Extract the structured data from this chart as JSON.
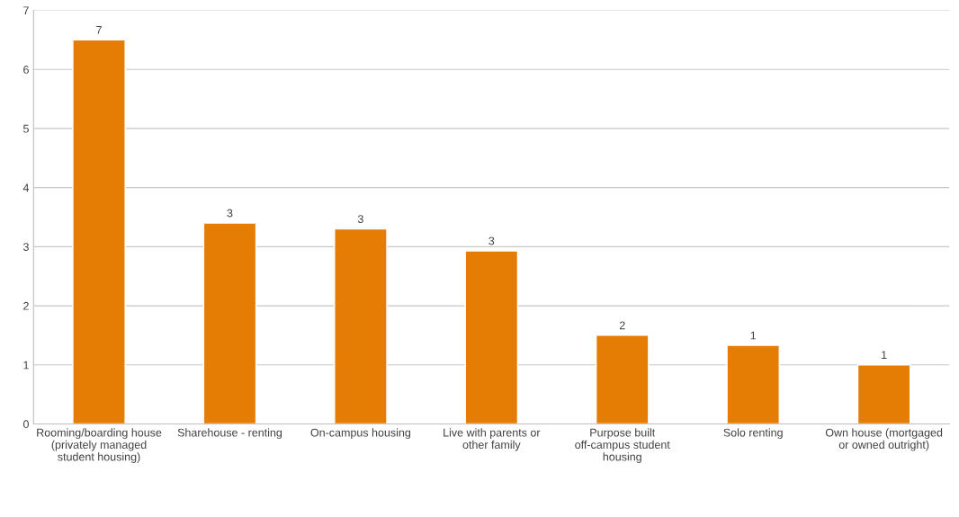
{
  "chart_data": {
    "type": "bar",
    "categories": [
      "Rooming/boarding house (privately managed student housing)",
      "Sharehouse - renting",
      "On-campus housing",
      "Live with parents or other family",
      "Purpose built off-campus student housing",
      "Solo renting",
      "Own house (mortgaged or owned outright)"
    ],
    "values": [
      6.5,
      3.4,
      3.3,
      2.93,
      1.5,
      1.33,
      1.0
    ],
    "value_labels": [
      "7",
      "3",
      "3",
      "3",
      "2",
      "1",
      "1"
    ],
    "color": "#e57c04",
    "ylim": [
      0,
      7
    ],
    "yticks": [
      0,
      1,
      2,
      3,
      4,
      5,
      6,
      7
    ],
    "grid": "y",
    "legend": false
  }
}
